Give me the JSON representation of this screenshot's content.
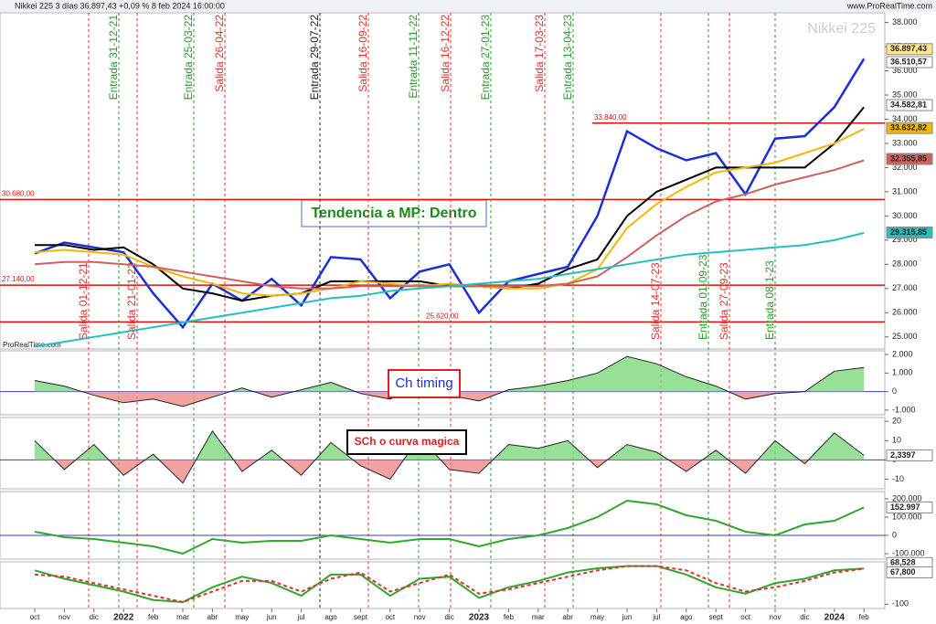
{
  "chart_data": [
    {
      "type": "line",
      "title": "Nikkei 225 3 días 36.897,43 +0,09 % 8 feb 2024 16:00:00",
      "annotations": [
        "Nikkei 225",
        "www.ProRealTime.com",
        "ProRealTime.com",
        "Tendencia a MP: Dentro"
      ],
      "categories": [
        "oct",
        "nov",
        "dic",
        "2022",
        "feb",
        "mar",
        "abr",
        "may",
        "jun",
        "jul",
        "ago",
        "sept",
        "oct",
        "nov",
        "dic",
        "2023",
        "feb",
        "mar",
        "abr",
        "may",
        "jun",
        "jul",
        "ago",
        "sept",
        "oct",
        "nov",
        "dic",
        "2024",
        "feb"
      ],
      "series": [
        {
          "color": "#1a2fd6",
          "values": [
            28450,
            28900,
            28700,
            28500,
            26800,
            25400,
            27200,
            26500,
            27400,
            26300,
            28300,
            28200,
            26600,
            27700,
            28000,
            26000,
            27300,
            27600,
            27900,
            30000,
            33500,
            32800,
            32300,
            32600,
            30900,
            33200,
            33300,
            34500,
            36500
          ]
        },
        {
          "color": "#000000",
          "values": [
            28800,
            28800,
            28600,
            28700,
            28000,
            27000,
            26800,
            26500,
            26700,
            26800,
            27300,
            27300,
            27300,
            27300,
            27100,
            27100,
            27000,
            27200,
            27800,
            28200,
            30000,
            31000,
            31500,
            32000,
            32000,
            32000,
            32000,
            33000,
            34500
          ]
        },
        {
          "color": "#f0b800",
          "values": [
            28500,
            28600,
            28500,
            28400,
            27900,
            27500,
            27200,
            26800,
            26700,
            26800,
            27000,
            27300,
            27200,
            27100,
            27200,
            27100,
            27000,
            27000,
            27200,
            27800,
            29500,
            30500,
            31200,
            31800,
            32000,
            32200,
            32600,
            33000,
            33600
          ]
        },
        {
          "color": "#d06060",
          "values": [
            28000,
            28100,
            28100,
            28000,
            27900,
            27700,
            27500,
            27300,
            27100,
            27000,
            27000,
            27100,
            27100,
            27100,
            27100,
            27100,
            27100,
            27100,
            27200,
            27500,
            28300,
            29200,
            30000,
            30600,
            30900,
            31300,
            31600,
            31900,
            32300
          ]
        },
        {
          "color": "#22c0c0",
          "values": [
            24600,
            24800,
            25000,
            25200,
            25400,
            25600,
            25800,
            26000,
            26200,
            26400,
            26600,
            26700,
            26900,
            27000,
            27100,
            27200,
            27300,
            27400,
            27600,
            27800,
            28000,
            28200,
            28400,
            28500,
            28600,
            28700,
            28800,
            29000,
            29300
          ]
        }
      ],
      "ylim": [
        24500,
        38400
      ],
      "yticks": [
        {
          "value": 38000,
          "label": "38.000"
        },
        {
          "value": 37000,
          "label": "37.000"
        },
        {
          "value": 36000,
          "label": "36.000"
        },
        {
          "value": 35000,
          "label": "35.000"
        },
        {
          "value": 34000,
          "label": "34.000"
        },
        {
          "value": 33000,
          "label": "33.000"
        },
        {
          "value": 32000,
          "label": "32.000"
        },
        {
          "value": 31000,
          "label": "31.000"
        },
        {
          "value": 30000,
          "label": "30.000"
        },
        {
          "value": 29000,
          "label": "29.000"
        },
        {
          "value": 28000,
          "label": "28.000"
        },
        {
          "value": 27000,
          "label": "27.000"
        },
        {
          "value": 26000,
          "label": "26.000"
        },
        {
          "value": 25000,
          "label": "25.000"
        }
      ],
      "levels": [
        {
          "value": 30680,
          "label": "30.680,00"
        },
        {
          "value": 27140,
          "label": "27.140,00"
        },
        {
          "value": 25620,
          "label": "25.620,00"
        },
        {
          "value": 33840,
          "label": "33.840,00"
        }
      ],
      "value_tags": [
        {
          "value": 36897.43,
          "label": "36.897,43",
          "color": "#ffe98a"
        },
        {
          "value": 36510.57,
          "label": "36.510,57",
          "color": "#ffffff"
        },
        {
          "value": 34582.81,
          "label": "34.582,81",
          "color": "#ffffff"
        },
        {
          "value": 33632.82,
          "label": "33.632,82",
          "color": "#f0b800"
        },
        {
          "value": 32355.85,
          "label": "32.355,85",
          "color": "#d06060"
        },
        {
          "value": 29315.85,
          "label": "29.315,85",
          "color": "#22c0c0"
        }
      ],
      "events": [
        {
          "label": "Entrada 31-12-21",
          "color": "#2a9a2a"
        },
        {
          "label": "Entrada 25-03-22",
          "color": "#2a9a2a"
        },
        {
          "label": "Salida 26-04-22",
          "color": "#e03030"
        },
        {
          "label": "Entrada 29-07-22",
          "color": "#222222"
        },
        {
          "label": "Salida 16-09-22",
          "color": "#e03030"
        },
        {
          "label": "Entrada 11-11-22",
          "color": "#2a9a2a"
        },
        {
          "label": "Salida 16-12-22",
          "color": "#e03030"
        },
        {
          "label": "Entrada 27-01-23",
          "color": "#2a9a2a"
        },
        {
          "label": "Salida 17-03-23",
          "color": "#e03030"
        },
        {
          "label": "Entrada 13-04-23",
          "color": "#2a9a2a"
        },
        {
          "label": "Salida 01-12-21",
          "color": "#e03030"
        },
        {
          "label": "Salida 21-01-22",
          "color": "#e03030"
        },
        {
          "label": "Salida 14-07-23",
          "color": "#e03030"
        },
        {
          "label": "Entrada 01-09-23",
          "color": "#2a9a2a"
        },
        {
          "label": "Salida 27-09-23",
          "color": "#e03030"
        },
        {
          "label": "Entrada 08-1-23",
          "color": "#2a9a2a"
        }
      ]
    },
    {
      "type": "area",
      "title": "Ch timing",
      "series": [
        {
          "color": "#7ed87e",
          "values": [
            600,
            300,
            -200,
            -600,
            -400,
            -800,
            -300,
            200,
            -300,
            100,
            500,
            -100,
            -400,
            300,
            -200,
            -500,
            100,
            300,
            600,
            1000,
            1900,
            1500,
            800,
            300,
            -400,
            -100,
            0,
            1100,
            1300
          ]
        }
      ],
      "ylim": [
        -1250,
        2200
      ],
      "yticks": [
        {
          "value": 2000,
          "label": "2.000"
        },
        {
          "value": 1000,
          "label": "1.000"
        },
        0,
        {
          "value": -1000,
          "label": "-1.000"
        }
      ]
    },
    {
      "type": "area",
      "title": "SCh o curva magica",
      "series": [
        {
          "color": "#7ed87e",
          "values": [
            10,
            -5,
            8,
            -8,
            3,
            -12,
            15,
            -6,
            5,
            -8,
            9,
            -3,
            -10,
            12,
            -5,
            -7,
            8,
            6,
            10,
            -4,
            8,
            4,
            -6,
            5,
            -7,
            10,
            -2,
            14,
            2.3397
          ]
        }
      ],
      "ylim": [
        -15,
        22
      ],
      "yticks": [
        20,
        10,
        0,
        -10
      ],
      "value_tags": [
        {
          "value": 2.3397,
          "label": "2,3397",
          "color": "#ffffff"
        }
      ]
    },
    {
      "type": "line",
      "series": [
        {
          "color": "#2ea82e",
          "values": [
            20000,
            -10000,
            -20000,
            -40000,
            -60000,
            -100000,
            -20000,
            -40000,
            -30000,
            -30000,
            0,
            -20000,
            -40000,
            -20000,
            -20000,
            -60000,
            -20000,
            0,
            40000,
            100000,
            190000,
            170000,
            110000,
            80000,
            20000,
            0,
            60000,
            80000,
            152997
          ]
        }
      ],
      "ylim": [
        -130000,
        240000
      ],
      "yticks": [
        {
          "value": 200000,
          "label": "200.000"
        },
        {
          "value": 100000,
          "label": "100.000"
        },
        0,
        {
          "value": -100000,
          "label": "-100.000"
        }
      ],
      "value_tags": [
        {
          "value": 152997,
          "label": "152.997",
          "color": "#ffffff"
        }
      ]
    },
    {
      "type": "line",
      "series": [
        {
          "color": "#2ea82e",
          "values": [
            60,
            20,
            -10,
            -40,
            -80,
            -90,
            -20,
            30,
            0,
            -60,
            40,
            40,
            -60,
            20,
            30,
            -70,
            -20,
            10,
            50,
            70,
            80,
            80,
            40,
            -20,
            -50,
            0,
            20,
            60,
            68.528
          ]
        },
        {
          "color": "#e03030",
          "values": [
            40,
            30,
            0,
            -30,
            -60,
            -90,
            -40,
            10,
            10,
            -40,
            20,
            50,
            -40,
            0,
            40,
            -50,
            -30,
            0,
            30,
            60,
            80,
            80,
            60,
            0,
            -40,
            -20,
            10,
            50,
            67.8
          ]
        }
      ],
      "ylim": [
        -120,
        100
      ],
      "yticks": [
        -100
      ],
      "value_tags": [
        {
          "value": 68.528,
          "label": "68,528",
          "color": "#ffffff"
        },
        {
          "value": 67.8,
          "label": "67,800",
          "color": "#ffffff"
        }
      ]
    }
  ]
}
